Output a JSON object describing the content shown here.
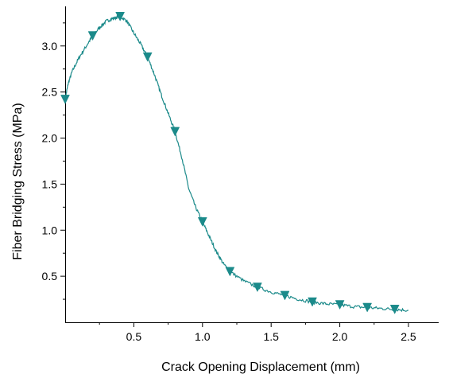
{
  "chart_data": {
    "type": "line",
    "title": "",
    "xlabel": "Crack Opening Displacement (mm)",
    "ylabel": "Fiber Bridging Stress (MPa)",
    "xlim": [
      0.0,
      2.72
    ],
    "ylim": [
      0.0,
      3.43
    ],
    "x_ticks": [
      {
        "value": 0.5,
        "label": "0.5"
      },
      {
        "value": 1.0,
        "label": "1.0"
      },
      {
        "value": 1.5,
        "label": "1.5"
      },
      {
        "value": 2.0,
        "label": "2.0"
      },
      {
        "value": 2.5,
        "label": "2.5"
      }
    ],
    "y_ticks": [
      {
        "value": 0.5,
        "label": "0.5"
      },
      {
        "value": 1.0,
        "label": "1.0"
      },
      {
        "value": 1.5,
        "label": "1.5"
      },
      {
        "value": 2.0,
        "label": "2.0"
      },
      {
        "value": 2.5,
        "label": "2.5"
      },
      {
        "value": 3.0,
        "label": "3.0"
      }
    ],
    "grid": false,
    "legend": "none",
    "color": "#1b8a8a",
    "marker": "down-triangle",
    "series": [
      {
        "x": [
          0.0,
          0.02,
          0.05,
          0.1,
          0.15,
          0.2,
          0.25,
          0.3,
          0.35,
          0.4,
          0.45,
          0.5,
          0.55,
          0.6,
          0.65,
          0.7,
          0.75,
          0.8,
          0.85,
          0.9,
          0.95,
          1.0,
          1.05,
          1.1,
          1.15,
          1.2,
          1.3,
          1.4,
          1.5,
          1.6,
          1.7,
          1.8,
          1.9,
          2.0,
          2.1,
          2.2,
          2.3,
          2.4,
          2.5
        ],
        "y": [
          2.42,
          2.58,
          2.72,
          2.87,
          2.99,
          3.11,
          3.2,
          3.27,
          3.3,
          3.32,
          3.27,
          3.14,
          3.02,
          2.88,
          2.69,
          2.47,
          2.27,
          2.07,
          1.79,
          1.45,
          1.25,
          1.09,
          0.93,
          0.77,
          0.64,
          0.55,
          0.45,
          0.38,
          0.33,
          0.29,
          0.25,
          0.22,
          0.2,
          0.19,
          0.17,
          0.16,
          0.15,
          0.14,
          0.13
        ],
        "markers": [
          {
            "x": 0.0,
            "y": 2.42
          },
          {
            "x": 0.2,
            "y": 3.11
          },
          {
            "x": 0.4,
            "y": 3.32
          },
          {
            "x": 0.6,
            "y": 2.88
          },
          {
            "x": 0.8,
            "y": 2.07
          },
          {
            "x": 1.0,
            "y": 1.09
          },
          {
            "x": 1.2,
            "y": 0.55
          },
          {
            "x": 1.4,
            "y": 0.38
          },
          {
            "x": 1.6,
            "y": 0.29
          },
          {
            "x": 1.8,
            "y": 0.22
          },
          {
            "x": 2.0,
            "y": 0.19
          },
          {
            "x": 2.2,
            "y": 0.16
          },
          {
            "x": 2.4,
            "y": 0.14
          }
        ]
      }
    ]
  }
}
